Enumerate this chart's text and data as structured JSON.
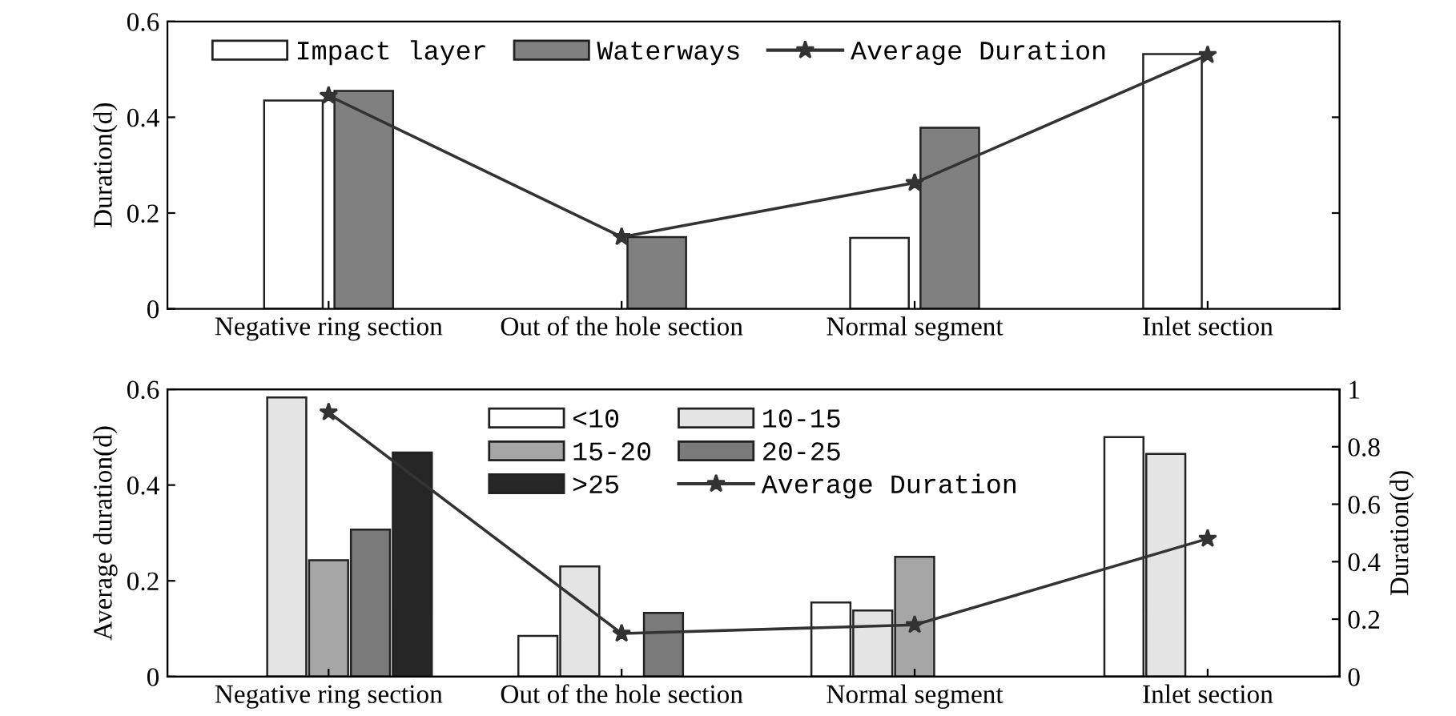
{
  "chart_data": [
    {
      "type": "bar",
      "ylabel": "Duration(d)",
      "categories": [
        "Negative ring section",
        "Out of the hole section",
        "Normal segment",
        "Inlet section"
      ],
      "ylim": [
        0,
        0.6
      ],
      "yticks": [
        0,
        0.2,
        0.4,
        0.6
      ],
      "grid": false,
      "legend": "top",
      "series": [
        {
          "name": "Impact layer",
          "color": "#ffffff",
          "values": [
            0.435,
            null,
            0.148,
            0.532
          ]
        },
        {
          "name": "Waterways",
          "color": "#808080",
          "values": [
            0.455,
            0.15,
            0.378,
            null
          ]
        },
        {
          "name": "Average Duration",
          "type": "line",
          "color": "#333333",
          "marker": "star",
          "values": [
            0.445,
            0.15,
            0.263,
            0.53
          ]
        }
      ]
    },
    {
      "type": "bar",
      "ylabel": "Average duration(d)",
      "y2label": "Duration(d)",
      "categories": [
        "Negative ring section",
        "Out of the hole section",
        "Normal segment",
        "Inlet section"
      ],
      "ylim": [
        0,
        0.6
      ],
      "yticks": [
        0,
        0.2,
        0.4,
        0.6
      ],
      "y2lim": [
        0,
        1
      ],
      "y2ticks": [
        0,
        0.2,
        0.4,
        0.6,
        0.8,
        1
      ],
      "grid": false,
      "legend": "top",
      "series": [
        {
          "name": "<10",
          "color": "#ffffff",
          "values": [
            null,
            0.085,
            0.155,
            0.5
          ]
        },
        {
          "name": "10-15",
          "color": "#e4e4e4",
          "values": [
            0.583,
            0.23,
            0.138,
            0.465
          ]
        },
        {
          "name": "15-20",
          "color": "#a6a6a6",
          "values": [
            0.243,
            null,
            0.25,
            null
          ]
        },
        {
          "name": "20-25",
          "color": "#7a7a7a",
          "values": [
            0.307,
            0.133,
            null,
            null
          ]
        },
        {
          "name": ">25",
          "color": "#262626",
          "values": [
            0.468,
            null,
            null,
            null
          ]
        },
        {
          "name": "Average Duration",
          "type": "line",
          "axis": "y2",
          "color": "#333333",
          "marker": "star",
          "values": [
            0.92,
            0.15,
            0.18,
            0.48
          ]
        }
      ]
    }
  ]
}
